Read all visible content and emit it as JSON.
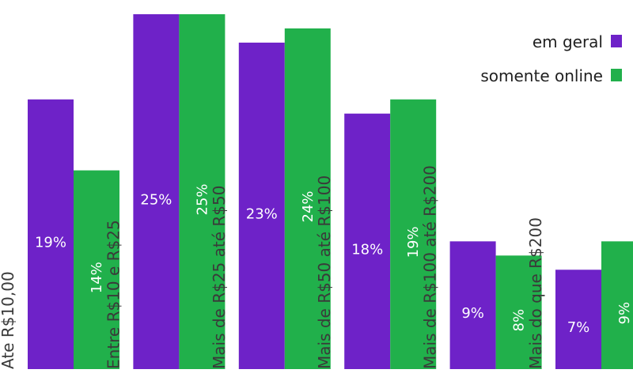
{
  "chart_data": {
    "type": "bar",
    "categories": [
      "Ate R$10,00",
      "Entre R$10 e R$25",
      "Mais de R$25 até R$50",
      "Mais de R$50 até R$100",
      "Mais de R$100 até R$200",
      "Mais do que R$200"
    ],
    "series": [
      {
        "name": "em geral",
        "color": "#6e22c8",
        "values": [
          19,
          25,
          23,
          18,
          9,
          7
        ],
        "labels": [
          "19%",
          "25%",
          "23%",
          "18%",
          "9%",
          "7%"
        ]
      },
      {
        "name": "somente online",
        "color": "#21b04b",
        "values": [
          14,
          25,
          24,
          19,
          8,
          9
        ],
        "labels": [
          "14%",
          "25%",
          "24%",
          "19%",
          "8%",
          "9%"
        ]
      }
    ],
    "ylim": [
      0,
      25
    ],
    "grid": false,
    "legend": "top-right"
  }
}
